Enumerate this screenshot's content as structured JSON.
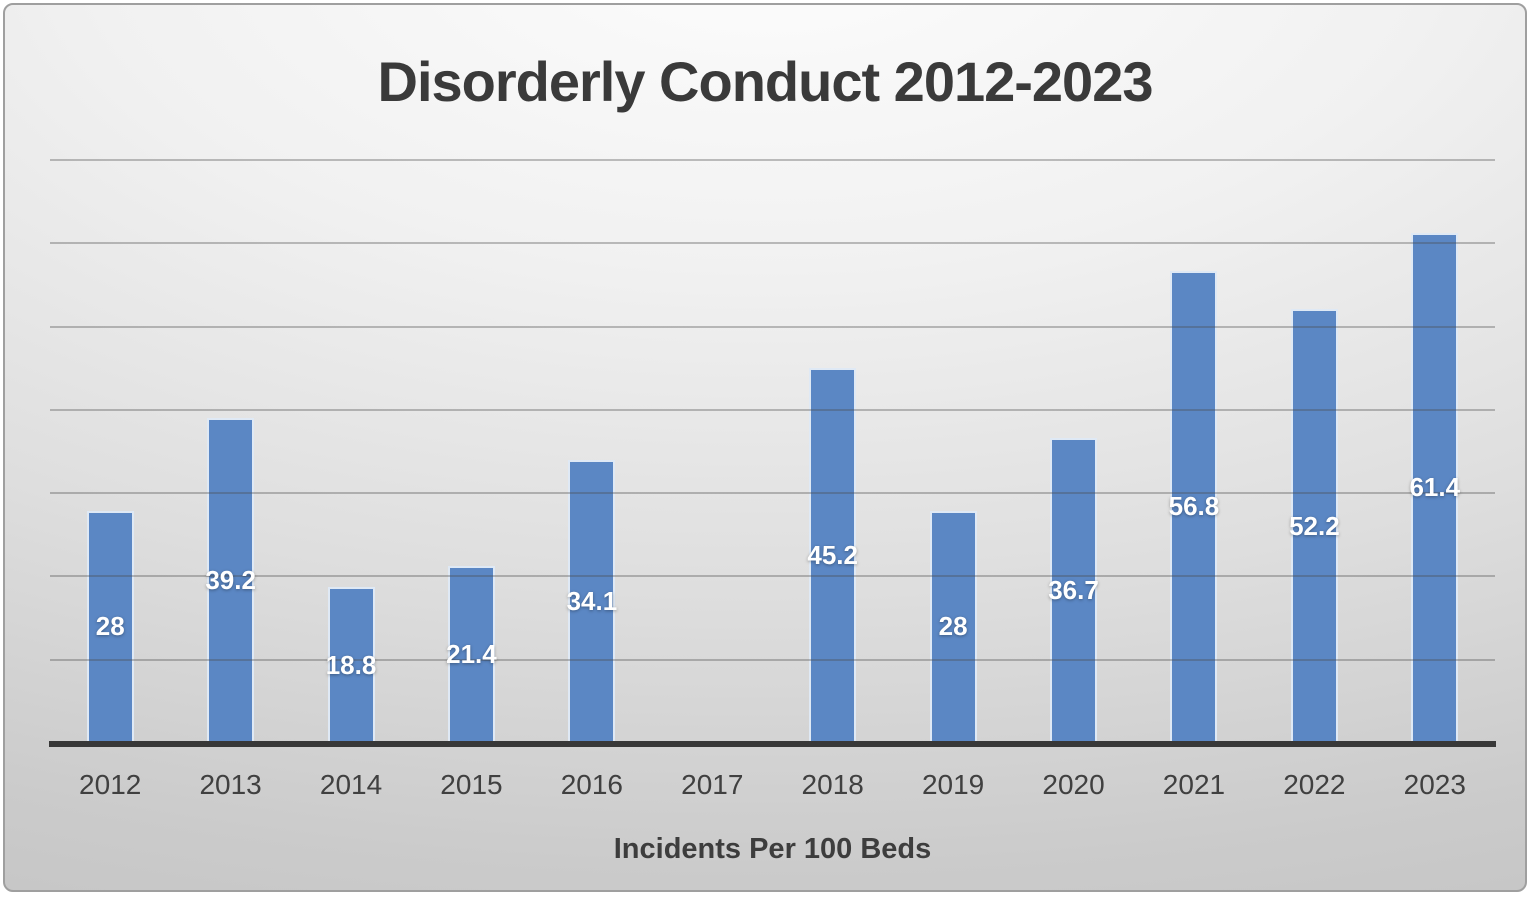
{
  "chart_data": {
    "type": "bar",
    "title": "Disorderly Conduct 2012-2023",
    "xlabel": "Incidents Per 100 Beds",
    "ylabel": "",
    "categories": [
      "2012",
      "2013",
      "2014",
      "2015",
      "2016",
      "2017",
      "2018",
      "2019",
      "2020",
      "2021",
      "2022",
      "2023"
    ],
    "values": [
      28,
      39.2,
      18.8,
      21.4,
      34.1,
      null,
      45.2,
      28,
      36.7,
      56.8,
      52.2,
      61.4
    ],
    "value_labels": [
      "28",
      "39.2",
      "18.8",
      "21.4",
      "34.1",
      "",
      "45.2",
      "28",
      "36.7",
      "56.8",
      "52.2",
      "61.4"
    ],
    "ylim": [
      0,
      70
    ],
    "gridline_step": 10,
    "grid": "on",
    "y_tick_labels_visible": false,
    "legend": "none",
    "bar_color": "#5b87c4",
    "bar_border_color": "#dfe9f5",
    "label_color": "#ffffff",
    "axis_line_color": "#383838",
    "text_color": "#3a3a3a"
  }
}
